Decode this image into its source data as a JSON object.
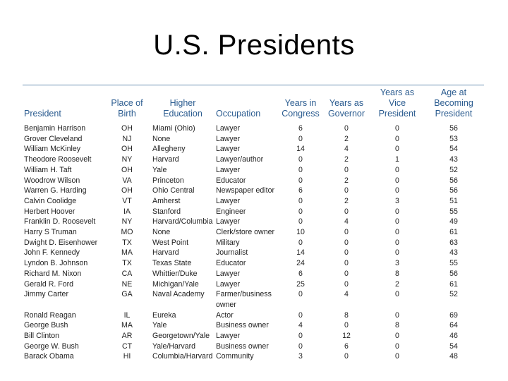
{
  "title": "U.S. Presidents",
  "table": {
    "headers": [
      [
        "",
        "President"
      ],
      [
        "Place of",
        "Birth"
      ],
      [
        "Higher",
        "Education"
      ],
      [
        "",
        "Occupation"
      ],
      [
        "Years in",
        "Congress"
      ],
      [
        "Years as",
        "Governor"
      ],
      [
        "Years as Vice",
        "President"
      ],
      [
        "Age at Becoming",
        "President"
      ]
    ],
    "rows": [
      {
        "president": "Benjamin Harrison",
        "birth": "OH",
        "education": "Miami (Ohio)",
        "occupation": "Lawyer",
        "congress": "6",
        "governor": "0",
        "vp": "0",
        "age": "56"
      },
      {
        "president": "Grover Cleveland",
        "birth": "NJ",
        "education": "None",
        "occupation": "Lawyer",
        "congress": "0",
        "governor": "2",
        "vp": "0",
        "age": "53"
      },
      {
        "president": "William McKinley",
        "birth": "OH",
        "education": "Allegheny",
        "occupation": "Lawyer",
        "congress": "14",
        "governor": "4",
        "vp": "0",
        "age": "54"
      },
      {
        "president": "Theodore Roosevelt",
        "birth": "NY",
        "education": "Harvard",
        "occupation": "Lawyer/author",
        "congress": "0",
        "governor": "2",
        "vp": "1",
        "age": "43"
      },
      {
        "president": "William H. Taft",
        "birth": "OH",
        "education": "Yale",
        "occupation": "Lawyer",
        "congress": "0",
        "governor": "0",
        "vp": "0",
        "age": "52"
      },
      {
        "president": "Woodrow Wilson",
        "birth": "VA",
        "education": "Princeton",
        "occupation": "Educator",
        "congress": "0",
        "governor": "2",
        "vp": "0",
        "age": "56"
      },
      {
        "president": "Warren G. Harding",
        "birth": "OH",
        "education": "Ohio Central",
        "occupation": "Newspaper editor",
        "congress": "6",
        "governor": "0",
        "vp": "0",
        "age": "56"
      },
      {
        "president": "Calvin Coolidge",
        "birth": "VT",
        "education": "Amherst",
        "occupation": "Lawyer",
        "congress": "0",
        "governor": "2",
        "vp": "3",
        "age": "51"
      },
      {
        "president": "Herbert Hoover",
        "birth": "IA",
        "education": "Stanford",
        "occupation": "Engineer",
        "congress": "0",
        "governor": "0",
        "vp": "0",
        "age": "55"
      },
      {
        "president": "Franklin D. Roosevelt",
        "birth": "NY",
        "education": "Harvard/Columbia",
        "occupation": "Lawyer",
        "congress": "0",
        "governor": "4",
        "vp": "0",
        "age": "49"
      },
      {
        "president": "Harry S Truman",
        "birth": "MO",
        "education": "None",
        "occupation": "Clerk/store owner",
        "congress": "10",
        "governor": "0",
        "vp": "0",
        "age": "61"
      },
      {
        "president": "Dwight D. Eisenhower",
        "birth": "TX",
        "education": "West Point",
        "occupation": "Military",
        "congress": "0",
        "governor": "0",
        "vp": "0",
        "age": "63"
      },
      {
        "president": "John F. Kennedy",
        "birth": "MA",
        "education": "Harvard",
        "occupation": "Journalist",
        "congress": "14",
        "governor": "0",
        "vp": "0",
        "age": "43"
      },
      {
        "president": "Lyndon B. Johnson",
        "birth": "TX",
        "education": "Texas State",
        "occupation": "Educator",
        "congress": "24",
        "governor": "0",
        "vp": "3",
        "age": "55"
      },
      {
        "president": "Richard M. Nixon",
        "birth": "CA",
        "education": "Whittier/Duke",
        "occupation": "Lawyer",
        "congress": "6",
        "governor": "0",
        "vp": "8",
        "age": "56"
      },
      {
        "president": "Gerald R. Ford",
        "birth": "NE",
        "education": "Michigan/Yale",
        "occupation": "Lawyer",
        "congress": "25",
        "governor": "0",
        "vp": "2",
        "age": "61"
      },
      {
        "president": "Jimmy Carter",
        "birth": "GA",
        "education": "Naval Academy",
        "occupation": "Farmer/business",
        "occupation2": "owner",
        "congress": "0",
        "governor": "4",
        "vp": "0",
        "age": "52"
      },
      {
        "president": "Ronald Reagan",
        "birth": "IL",
        "education": "Eureka",
        "occupation": "Actor",
        "congress": "0",
        "governor": "8",
        "vp": "0",
        "age": "69"
      },
      {
        "president": "George Bush",
        "birth": "MA",
        "education": "Yale",
        "occupation": "Business owner",
        "congress": "4",
        "governor": "0",
        "vp": "8",
        "age": "64"
      },
      {
        "president": "Bill Clinton",
        "birth": "AR",
        "education": "Georgetown/Yale",
        "occupation": "Lawyer",
        "congress": "0",
        "governor": "12",
        "vp": "0",
        "age": "46"
      },
      {
        "president": "George W. Bush",
        "birth": "CT",
        "education": "Yale/Harvard",
        "occupation": "Business owner",
        "congress": "0",
        "governor": "6",
        "vp": "0",
        "age": "54"
      },
      {
        "president": "Barack Obama",
        "birth": "HI",
        "education": "Columbia/Harvard",
        "occupation": "Community",
        "congress": "3",
        "governor": "0",
        "vp": "0",
        "age": "48"
      }
    ]
  },
  "colors": {
    "header_text": "#2a5b8f",
    "rule": "#6a8fb3",
    "body_text": "#222222"
  }
}
